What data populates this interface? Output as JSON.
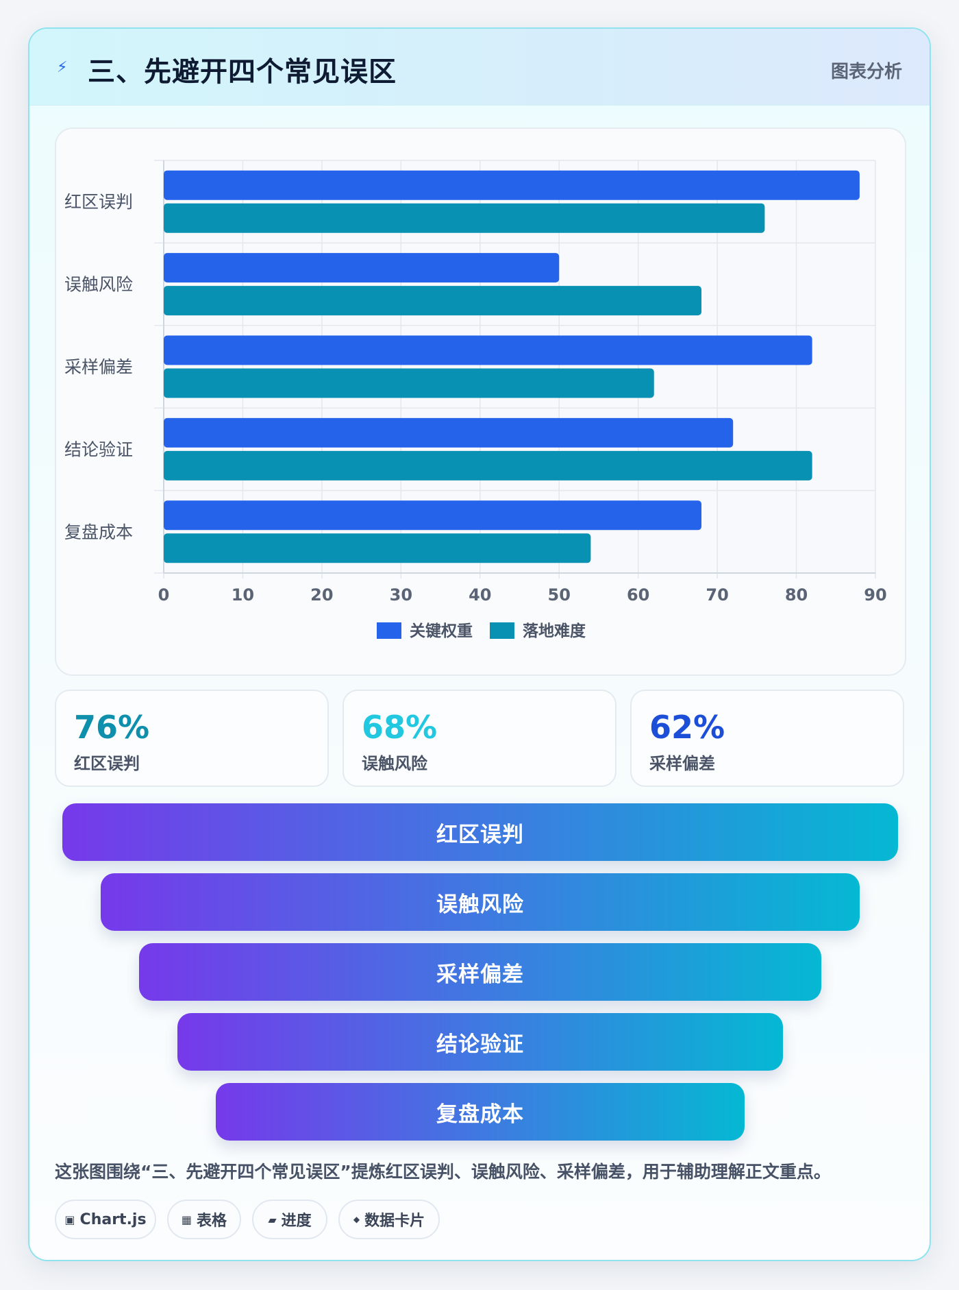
{
  "header": {
    "icon": "lightning-icon",
    "title": "三、先避开四个常见误区",
    "tag": "图表分析"
  },
  "chart_data": {
    "type": "bar",
    "orientation": "horizontal",
    "categories": [
      "红区误判",
      "误触风险",
      "采样偏差",
      "结论验证",
      "复盘成本"
    ],
    "series": [
      {
        "name": "关键权重",
        "values": [
          88,
          50,
          82,
          72,
          68
        ],
        "color": "#2563eb"
      },
      {
        "name": "落地难度",
        "values": [
          76,
          68,
          62,
          82,
          54
        ],
        "color": "#0891b2"
      }
    ],
    "xlim": [
      0,
      90
    ],
    "xticks": [
      "0",
      "10",
      "20",
      "30",
      "40",
      "50",
      "60",
      "70",
      "80",
      "90"
    ],
    "grid": true,
    "legend": "bottom"
  },
  "stats": [
    {
      "value": "76%",
      "label": "红区误判",
      "color": "#0e8fab"
    },
    {
      "value": "68%",
      "label": "误触风险",
      "color": "#22c7e0"
    },
    {
      "value": "62%",
      "label": "采样偏差",
      "color": "#1d4ed8"
    }
  ],
  "funnel": [
    "红区误判",
    "误触风险",
    "采样偏差",
    "结论验证",
    "复盘成本"
  ],
  "caption": "这张图围绕“三、先避开四个常见误区”提炼红区误判、误触风险、采样偏差，用于辅助理解正文重点。",
  "pills": [
    {
      "icon": "chart-icon",
      "glyph": "▣",
      "label": "Chart.js"
    },
    {
      "icon": "table-icon",
      "glyph": "▦",
      "label": "表格"
    },
    {
      "icon": "progress-icon",
      "glyph": "▰",
      "label": "进度"
    },
    {
      "icon": "data-card-icon",
      "glyph": "◆",
      "label": "数据卡片"
    }
  ]
}
